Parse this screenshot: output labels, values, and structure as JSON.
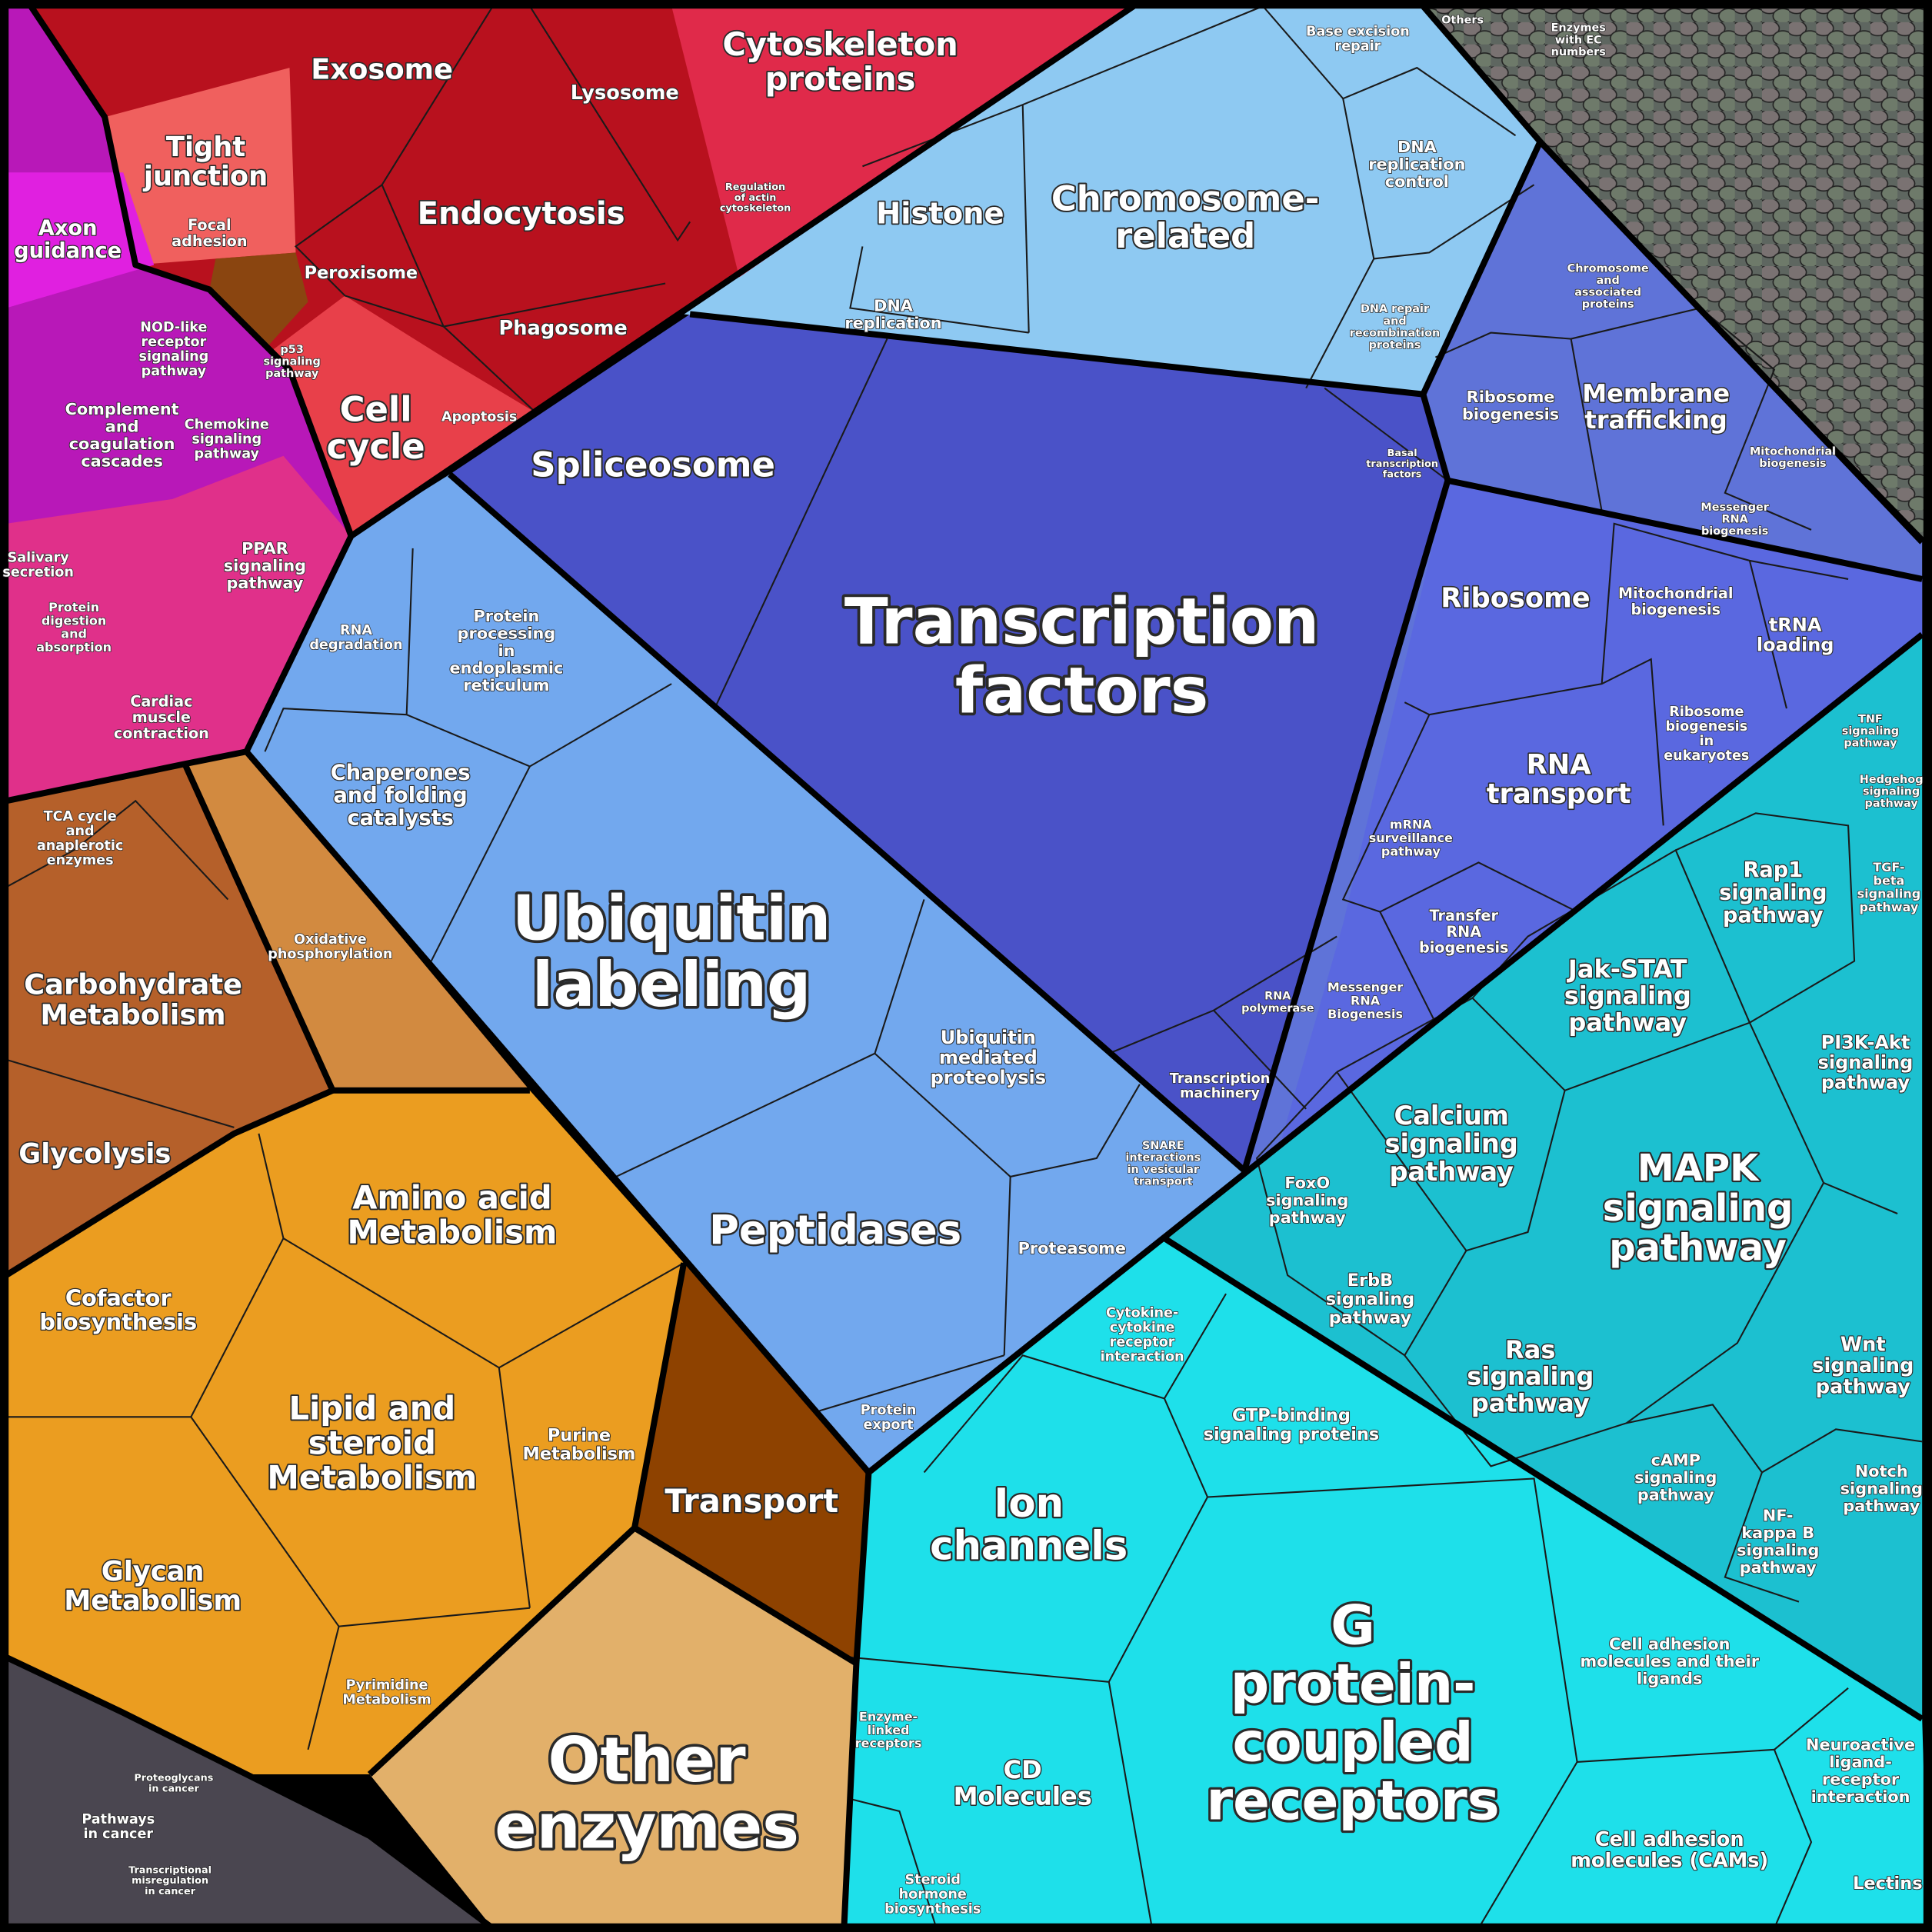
{
  "labels": [
    [
      "Transcription",
      "factors"
    ],
    [
      "Spliceosome"
    ],
    [
      "Ubiquitin",
      "labeling"
    ],
    [
      "Peptidases"
    ],
    [
      "Chaperones",
      "and folding",
      "catalysts"
    ],
    [
      "Protein",
      "processing",
      "in",
      "endoplasmic",
      "reticulum"
    ],
    [
      "RNA",
      "degradation"
    ],
    [
      "Ubiquitin",
      "mediated",
      "proteolysis"
    ],
    [
      "Proteasome"
    ],
    [
      "Protein",
      "export"
    ],
    [
      "SNARE",
      "interactions",
      "in vesicular",
      "transport"
    ],
    [
      "Ribosome"
    ],
    [
      "RNA",
      "transport"
    ],
    [
      "Mitochondrial",
      "biogenesis"
    ],
    [
      "tRNA",
      "loading"
    ],
    [
      "Ribosome",
      "biogenesis",
      "in",
      "eukaryotes"
    ],
    [
      "mRNA",
      "surveillance",
      "pathway"
    ],
    [
      "Transfer",
      "RNA",
      "biogenesis"
    ],
    [
      "Messenger",
      "RNA",
      "Biogenesis"
    ],
    [
      "RNA",
      "polymerase"
    ],
    [
      "Transcription",
      "machinery"
    ],
    [
      "Membrane",
      "trafficking"
    ],
    [
      "Ribosome",
      "biogenesis"
    ],
    [
      "Chromosome",
      "and",
      "associated",
      "proteins"
    ],
    [
      "Mitochondrial",
      "biogenesis"
    ],
    [
      "Messenger",
      "RNA",
      "biogenesis"
    ],
    [
      "Basal",
      "transcription",
      "factors"
    ],
    [
      "Histone"
    ],
    [
      "Chromosome-",
      "related"
    ],
    [
      "DNA",
      "replication"
    ],
    [
      "DNA",
      "replication",
      "control"
    ],
    [
      "Base excision",
      "repair"
    ],
    [
      "DNA repair",
      "and",
      "recombination",
      "proteins"
    ],
    [
      "Cytoskeleton",
      "proteins"
    ],
    [
      "Exosome"
    ],
    [
      "Endocytosis"
    ],
    [
      "Lysosome"
    ],
    [
      "Phagosome"
    ],
    [
      "Peroxisome"
    ],
    [
      "Tight",
      "junction"
    ],
    [
      "Focal",
      "adhesion"
    ],
    [
      "Cell",
      "cycle"
    ],
    [
      "Apoptosis"
    ],
    [
      "p53",
      "signaling",
      "pathway"
    ],
    [
      "Regulation",
      "of actin",
      "cytoskeleton"
    ],
    [
      "Axon",
      "guidance"
    ],
    [
      "NOD-like",
      "receptor",
      "signaling",
      "pathway"
    ],
    [
      "Complement",
      "and",
      "coagulation",
      "cascades"
    ],
    [
      "Chemokine",
      "signaling",
      "pathway"
    ],
    [
      "PPAR",
      "signaling",
      "pathway"
    ],
    [
      "Salivary",
      "secretion"
    ],
    [
      "Protein",
      "digestion",
      "and",
      "absorption"
    ],
    [
      "Cardiac",
      "muscle",
      "contraction"
    ],
    [
      "Carbohydrate",
      "Metabolism"
    ],
    [
      "Glycolysis"
    ],
    [
      "TCA cycle",
      "and",
      "anaplerotic",
      "enzymes"
    ],
    [
      "Oxidative",
      "phosphorylation"
    ],
    [
      "Amino acid",
      "Metabolism"
    ],
    [
      "Cofactor",
      "biosynthesis"
    ],
    [
      "Lipid and",
      "steroid",
      "Metabolism"
    ],
    [
      "Purine",
      "Metabolism"
    ],
    [
      "Glycan",
      "Metabolism"
    ],
    [
      "Pyrimidine",
      "Metabolism"
    ],
    [
      "Transport"
    ],
    [
      "Other",
      "enzymes"
    ],
    [
      "Pathways",
      "in cancer"
    ],
    [
      "Proteoglycans",
      "in cancer"
    ],
    [
      "Transcriptional",
      "misregulation",
      "in cancer"
    ],
    [
      "MAPK",
      "signaling",
      "pathway"
    ],
    [
      "Calcium",
      "signaling",
      "pathway"
    ],
    [
      "Jak-STAT",
      "signaling",
      "pathway"
    ],
    [
      "Rap1",
      "signaling",
      "pathway"
    ],
    [
      "PI3K-Akt",
      "signaling",
      "pathway"
    ],
    [
      "Ras",
      "signaling",
      "pathway"
    ],
    [
      "ErbB",
      "signaling",
      "pathway"
    ],
    [
      "FoxO",
      "signaling",
      "pathway"
    ],
    [
      "Wnt",
      "signaling",
      "pathway"
    ],
    [
      "cAMP",
      "signaling",
      "pathway"
    ],
    [
      "NF-",
      "kappa B",
      "signaling",
      "pathway"
    ],
    [
      "Notch",
      "signaling",
      "pathway"
    ],
    [
      "TGF-",
      "beta",
      "signaling",
      "pathway"
    ],
    [
      "G",
      "protein-",
      "coupled",
      "receptors"
    ],
    [
      "Ion",
      "channels"
    ],
    [
      "CD",
      "Molecules"
    ],
    [
      "GTP-binding",
      "signaling proteins"
    ],
    [
      "Cytokine-",
      "cytokine",
      "receptor",
      "interaction"
    ],
    [
      "Cell adhesion",
      "molecules and their",
      "ligands"
    ],
    [
      "Cell adhesion",
      "molecules (CAMs)"
    ],
    [
      "Neuroactive",
      "ligand-",
      "receptor",
      "interaction"
    ],
    [
      "Lectins"
    ],
    [
      "Steroid",
      "hormone",
      "biosynthesis"
    ],
    [
      "Enzyme-",
      "linked",
      "receptors"
    ],
    [
      "Others"
    ],
    [
      "Enzymes",
      "with EC",
      "numbers"
    ],
    [
      "Hedgehog",
      "signaling",
      "pathway"
    ],
    [
      "TNF",
      "signaling",
      "pathway"
    ]
  ]
}
